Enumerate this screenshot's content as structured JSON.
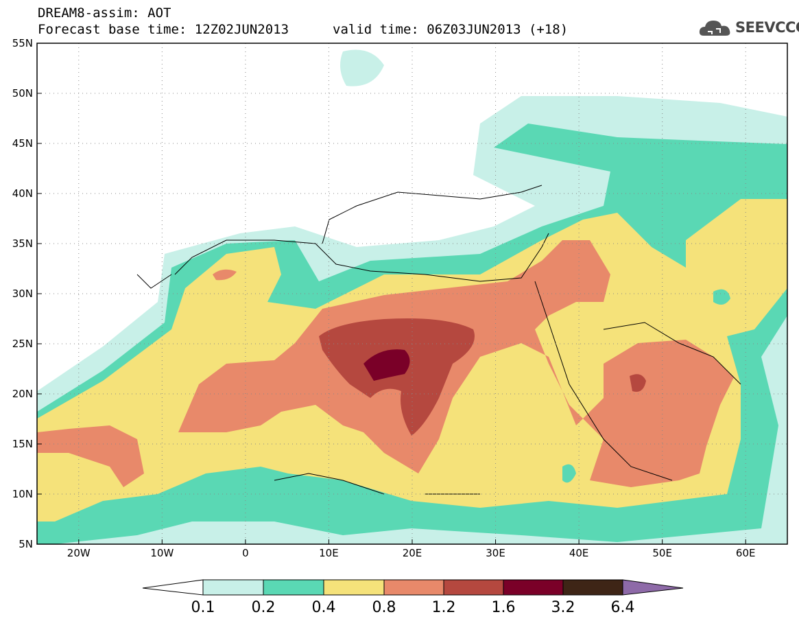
{
  "header": {
    "line1": "DREAM8-assim: AOT",
    "line2": "Forecast base time: 12Z02JUN2013",
    "valid": "valid time: 06Z03JUN2013 (+18)"
  },
  "logo": {
    "text": "SEEVCCC",
    "icon": "cloud-icon"
  },
  "map": {
    "lat_labels": [
      "55N",
      "50N",
      "45N",
      "40N",
      "35N",
      "30N",
      "25N",
      "20N",
      "15N",
      "10N",
      "5N"
    ],
    "lon_labels": [
      "20W",
      "10W",
      "0",
      "10E",
      "20E",
      "30E",
      "40E",
      "50E",
      "60E"
    ],
    "lon_range": [
      -25,
      65
    ],
    "lat_range": [
      5,
      55
    ]
  },
  "colorbar": {
    "labels": [
      "0.1",
      "0.2",
      "0.4",
      "0.8",
      "1.2",
      "1.6",
      "3.2",
      "6.4"
    ],
    "colors": [
      "#ffffff",
      "#c8f0e8",
      "#5ad8b4",
      "#f5e27a",
      "#e8896a",
      "#b5483f",
      "#7a0028",
      "#3e2516",
      "#8e6aa8"
    ]
  }
}
